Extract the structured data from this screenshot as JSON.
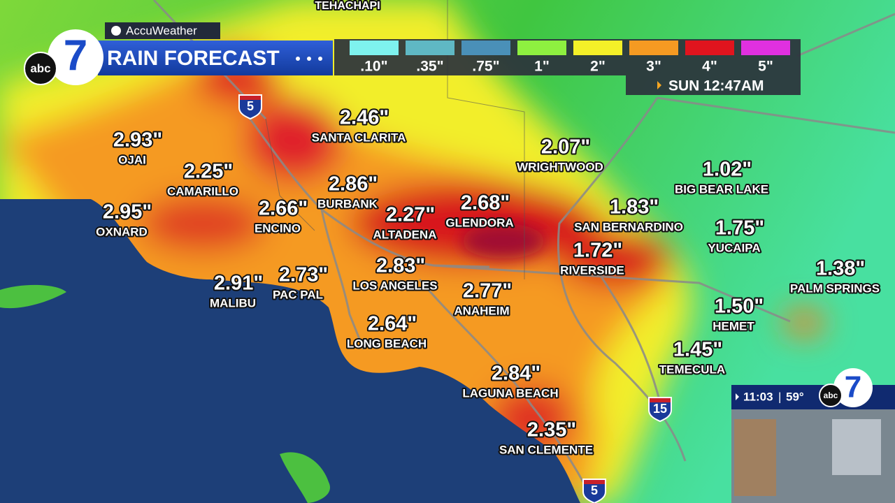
{
  "header": {
    "network": "abc",
    "station": "7",
    "brand": "AccuWeather",
    "title": "RAIN FORECAST",
    "timestamp": "SUN 12:47AM"
  },
  "legend": [
    {
      "label": ".10\"",
      "color": "#7ef2ee"
    },
    {
      "label": ".35\"",
      "color": "#5fb8c4"
    },
    {
      "label": ".75\"",
      "color": "#4a90b8"
    },
    {
      "label": "1\"",
      "color": "#8ef040"
    },
    {
      "label": "2\"",
      "color": "#f4f028"
    },
    {
      "label": "3\"",
      "color": "#f59a22"
    },
    {
      "label": "4\"",
      "color": "#e0141e"
    },
    {
      "label": "5\"",
      "color": "#e030e0"
    }
  ],
  "map": {
    "top_label": "TEHACHAPI",
    "cities": [
      {
        "name": "OJAI",
        "amount": "2.93\""
      },
      {
        "name": "CAMARILLO",
        "amount": "2.25\""
      },
      {
        "name": "OXNARD",
        "amount": "2.95\""
      },
      {
        "name": "ENCINO",
        "amount": "2.66\""
      },
      {
        "name": "BURBANK",
        "amount": "2.86\""
      },
      {
        "name": "SANTA CLARITA",
        "amount": "2.46\""
      },
      {
        "name": "ALTADENA",
        "amount": "2.27\""
      },
      {
        "name": "GLENDORA",
        "amount": "2.68\""
      },
      {
        "name": "WRIGHTWOOD",
        "amount": "2.07\""
      },
      {
        "name": "BIG BEAR LAKE",
        "amount": "1.02\""
      },
      {
        "name": "SAN BERNARDINO",
        "amount": "1.83\""
      },
      {
        "name": "YUCAIPA",
        "amount": "1.75\""
      },
      {
        "name": "RIVERSIDE",
        "amount": "1.72\""
      },
      {
        "name": "PALM SPRINGS",
        "amount": "1.38\""
      },
      {
        "name": "MALIBU",
        "amount": "2.91\""
      },
      {
        "name": "PAC PAL",
        "amount": "2.73\""
      },
      {
        "name": "LOS ANGELES",
        "amount": "2.83\""
      },
      {
        "name": "ANAHEIM",
        "amount": "2.77\""
      },
      {
        "name": "HEMET",
        "amount": "1.50\""
      },
      {
        "name": "LONG BEACH",
        "amount": "2.64\""
      },
      {
        "name": "TEMECULA",
        "amount": "1.45\""
      },
      {
        "name": "LAGUNA BEACH",
        "amount": "2.84\""
      },
      {
        "name": "SAN CLEMENTE",
        "amount": "2.35\""
      }
    ],
    "shields": [
      "5",
      "15",
      "5"
    ]
  },
  "inset": {
    "time": "11:03",
    "separator": "|",
    "temp": "59°",
    "network": "abc",
    "station": "7"
  }
}
